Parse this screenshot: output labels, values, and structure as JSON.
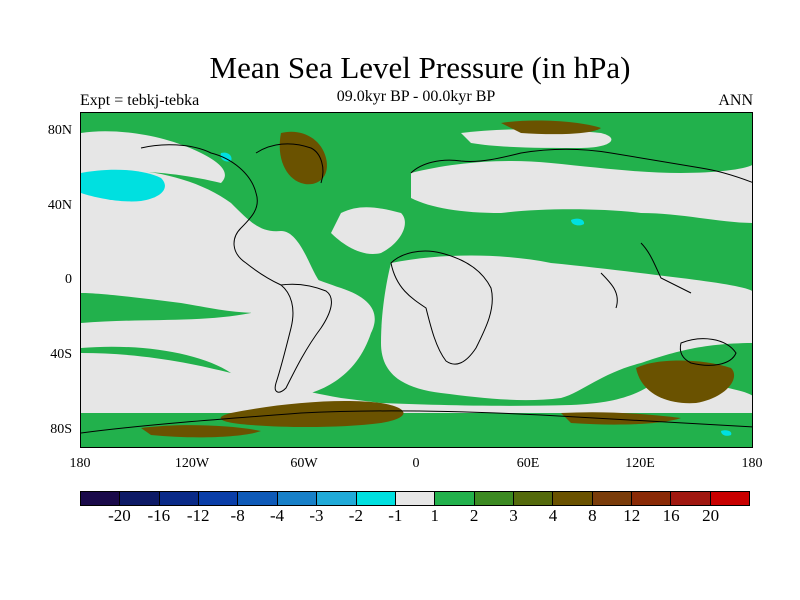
{
  "title": "Mean Sea Level Pressure (in hPa)",
  "subtitle_left": "Expt = tebkj-tebka",
  "subtitle_center": "09.0kyr BP - 00.0kyr BP",
  "subtitle_right": "ANN",
  "lat_labels": [
    "80N",
    "40N",
    "0",
    "40S",
    "80S"
  ],
  "lon_labels": [
    "180",
    "120W",
    "60W",
    "0",
    "60E",
    "120E",
    "180"
  ],
  "legend": {
    "colors": [
      "#1a0a4a",
      "#0d1a66",
      "#0a2a88",
      "#0a3ea8",
      "#0e5ab8",
      "#1880c8",
      "#20aad8",
      "#00e0e0",
      "#e6e6e6",
      "#22b14c",
      "#3c8a22",
      "#546a0c",
      "#6a5200",
      "#7a3c0a",
      "#8a2a06",
      "#a01810",
      "#c80000"
    ],
    "labels": [
      "-20",
      "-16",
      "-12",
      "-8",
      "-4",
      "-3",
      "-2",
      "-1",
      "1",
      "2",
      "3",
      "4",
      "8",
      "12",
      "16",
      "20"
    ]
  },
  "map_colors": {
    "near_zero": "#e6e6e6",
    "positive_1_2": "#22b14c",
    "positive_high": "#6a5200",
    "negative": "#00e0e0",
    "coast": "#000000"
  }
}
